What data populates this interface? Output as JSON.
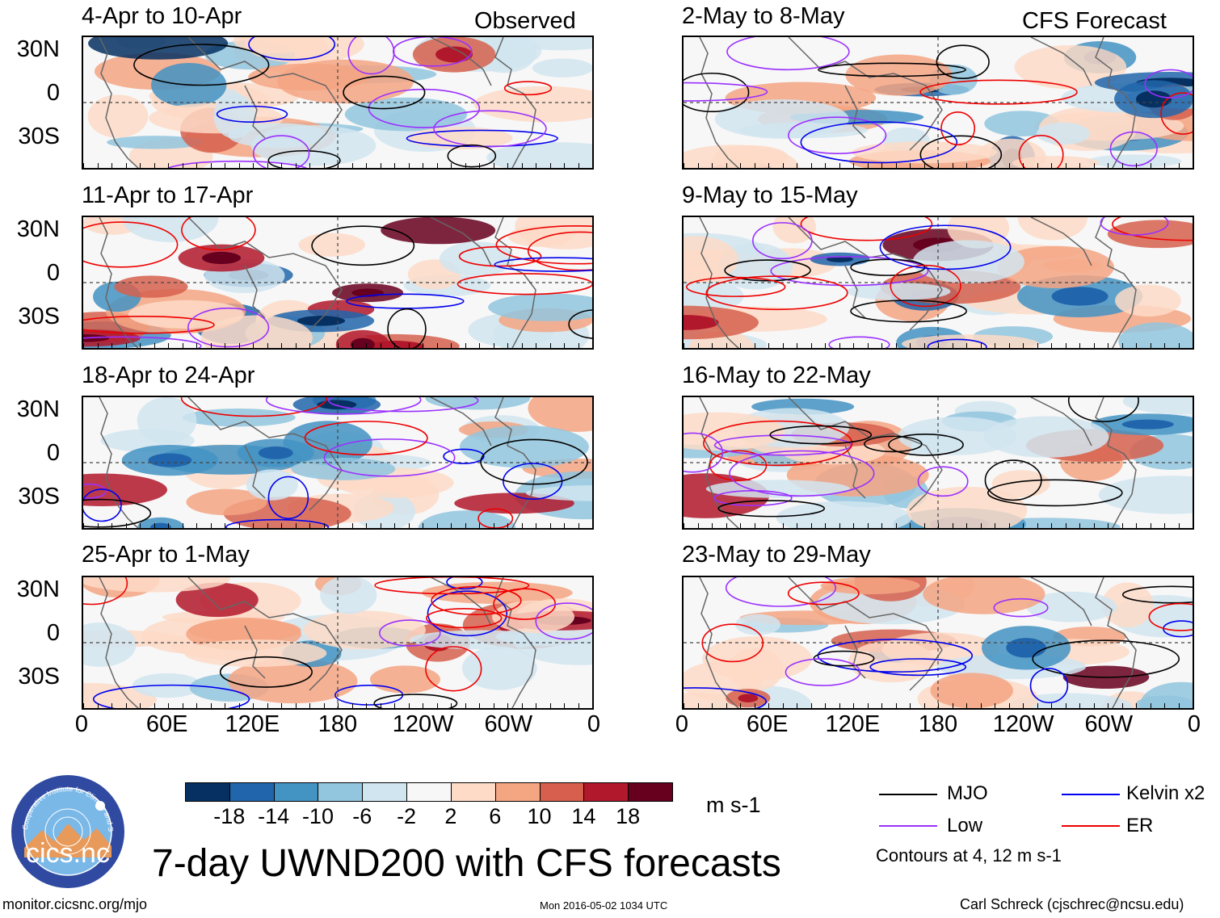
{
  "left_panels": [
    {
      "title": "4-Apr to 10-Apr",
      "tag": "Observed"
    },
    {
      "title": "11-Apr to 17-Apr",
      "tag": ""
    },
    {
      "title": "18-Apr to 24-Apr",
      "tag": ""
    },
    {
      "title": "25-Apr to 1-May",
      "tag": ""
    }
  ],
  "right_panels": [
    {
      "title": "2-May to 8-May",
      "tag": "CFS Forecast"
    },
    {
      "title": "9-May to 15-May",
      "tag": ""
    },
    {
      "title": "16-May to 22-May",
      "tag": ""
    },
    {
      "title": "23-May to 29-May",
      "tag": ""
    }
  ],
  "lat_labels": [
    "30N",
    "0",
    "30S"
  ],
  "lon_labels": [
    "0",
    "60E",
    "120E",
    "180",
    "120W",
    "60W",
    "0"
  ],
  "colorbar": {
    "colors": [
      "#053061",
      "#2166ac",
      "#4393c3",
      "#92c5de",
      "#d1e5f0",
      "#f7f7f7",
      "#fddbc7",
      "#f4a582",
      "#d6604d",
      "#b2182b",
      "#67001f"
    ],
    "labels": [
      "-18",
      "-14",
      "-10",
      "-6",
      "-2",
      "2",
      "6",
      "10",
      "14",
      "18"
    ],
    "units": "m s-1"
  },
  "legend": {
    "items": [
      {
        "label": "MJO",
        "color": "#000000"
      },
      {
        "label": "Kelvin x2",
        "color": "#0000ee"
      },
      {
        "label": "Low",
        "color": "#9b30ff"
      },
      {
        "label": "ER",
        "color": "#ee0000"
      }
    ],
    "note": "Contours at 4, 12 m s-1"
  },
  "logo": {
    "text": "cics.nc",
    "ring_text": "Cooperative Institute for Climate and Satellites"
  },
  "main_title": "7-day UWND200 with CFS forecasts",
  "footer": {
    "left": "monitor.cicsnc.org/mjo",
    "center": "Mon 2016-05-02 1034 UTC",
    "right": "Carl Schreck (cjschrec@ncsu.edu)"
  }
}
